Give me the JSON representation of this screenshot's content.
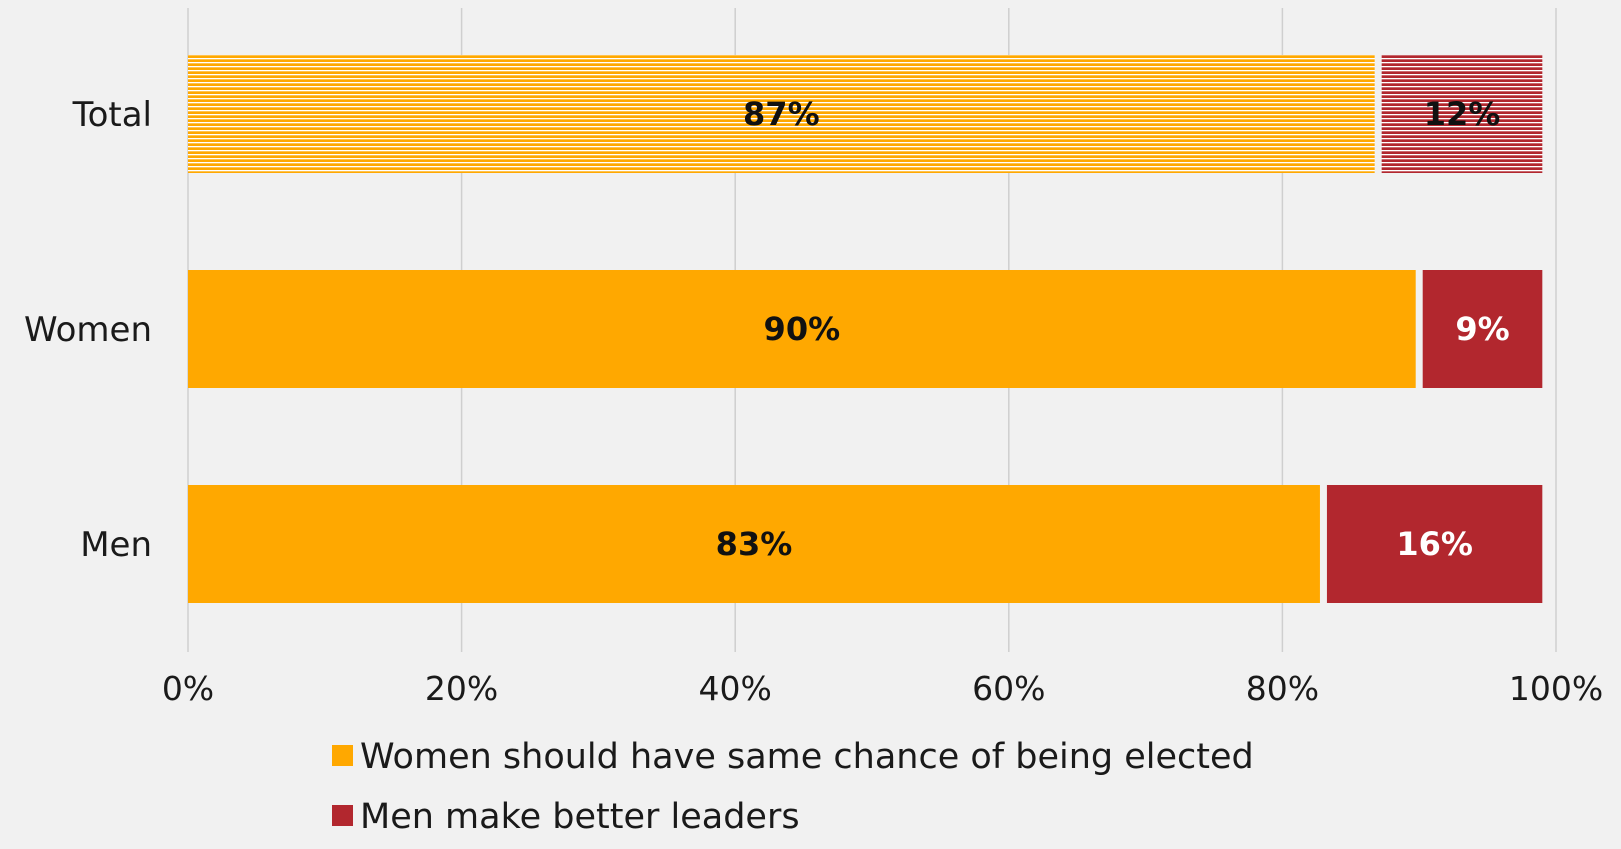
{
  "chart_data": {
    "type": "bar",
    "orientation": "horizontal",
    "stacked": true,
    "title": "",
    "xlabel": "",
    "ylabel": "",
    "categories": [
      "Total",
      "Women",
      "Men"
    ],
    "series": [
      {
        "name": "Women should have same chance of being elected",
        "values": [
          87,
          90,
          83
        ],
        "labels": [
          "87%",
          "90%",
          "83%"
        ],
        "color": "#FFA800",
        "label_color": "#111111"
      },
      {
        "name": "Men make better leaders",
        "values": [
          12,
          9,
          16
        ],
        "labels": [
          "12%",
          "9%",
          "16%"
        ],
        "color": "#B2272E",
        "label_color": "#ffffff"
      }
    ],
    "highlighted_category": "Total",
    "xlim": [
      0,
      100
    ],
    "x_ticks": [
      0,
      20,
      40,
      60,
      80,
      100
    ],
    "x_tick_labels": [
      "0%",
      "20%",
      "40%",
      "60%",
      "80%",
      "100%"
    ],
    "grid": true,
    "legend_position": "bottom"
  }
}
